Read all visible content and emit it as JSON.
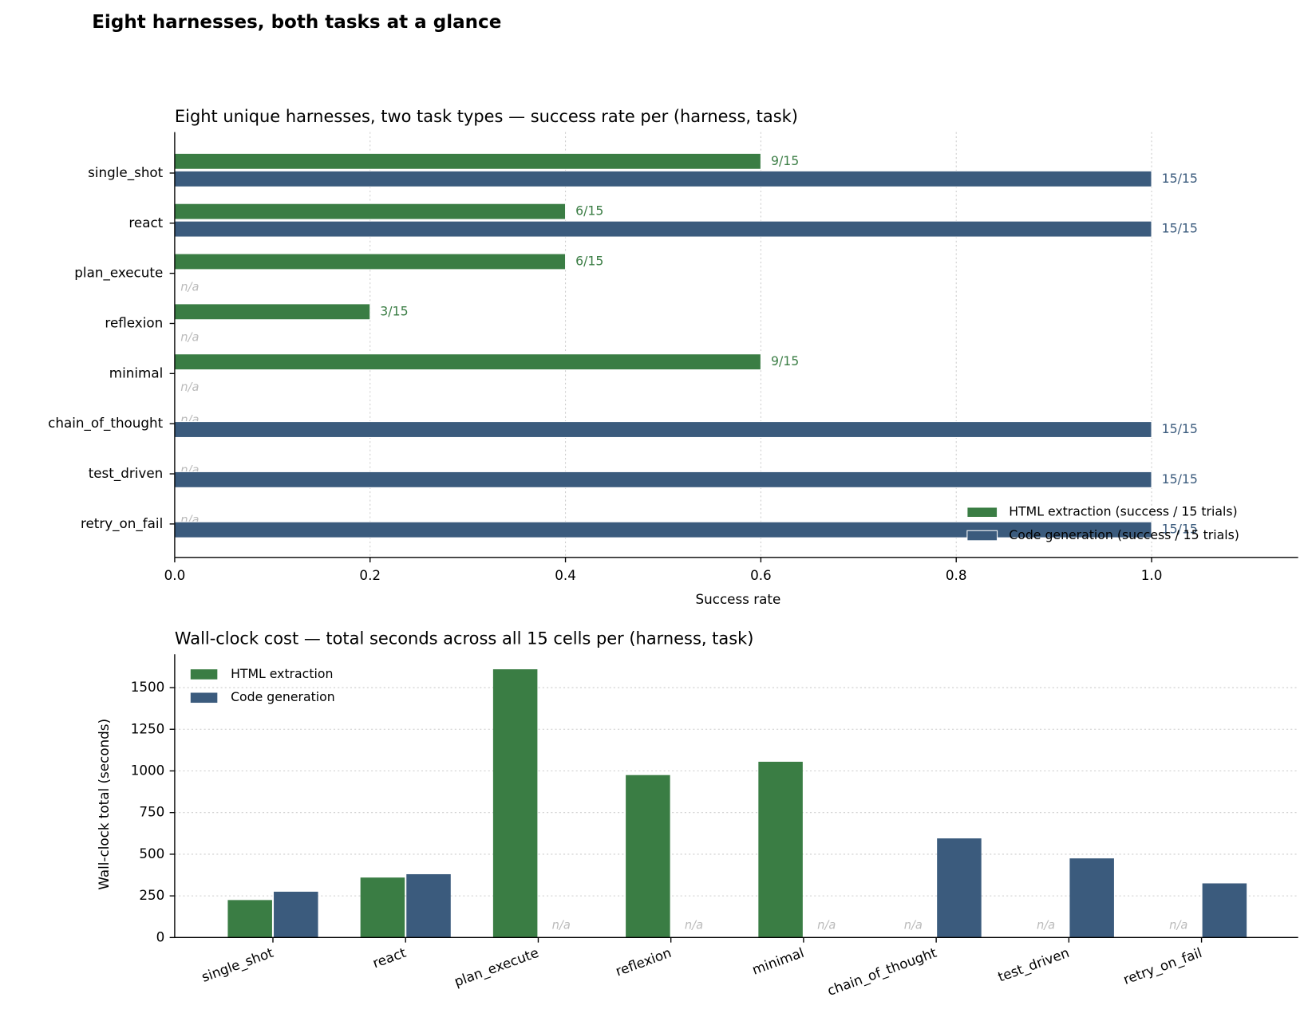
{
  "title": "Eight harnesses, both tasks at a glance",
  "chart_data": [
    {
      "type": "hbar",
      "title": "Eight unique harnesses, two task types — success rate per (harness, task)",
      "xlabel": "Success rate",
      "categories": [
        "single_shot",
        "react",
        "plan_execute",
        "reflexion",
        "minimal",
        "chain_of_thought",
        "test_driven",
        "retry_on_fail"
      ],
      "series": [
        {
          "name": "HTML extraction (success / 15 trials)",
          "color": "#3a7d44",
          "values": [
            0.6,
            0.4,
            0.4,
            0.2,
            0.6,
            null,
            null,
            null
          ],
          "value_labels": [
            "9/15",
            "6/15",
            "6/15",
            "3/15",
            "9/15",
            "n/a",
            "n/a",
            "n/a"
          ]
        },
        {
          "name": "Code generation (success / 15 trials)",
          "color": "#3b5b7d",
          "values": [
            1.0,
            1.0,
            null,
            null,
            null,
            1.0,
            1.0,
            1.0
          ],
          "value_labels": [
            "15/15",
            "15/15",
            "n/a",
            "n/a",
            "n/a",
            "15/15",
            "15/15",
            "15/15"
          ]
        }
      ],
      "xlim": [
        0,
        1.15
      ],
      "xticks": [
        {
          "value": 0,
          "label": "0.0"
        },
        {
          "value": 0.2,
          "label": "0.2"
        },
        {
          "value": 0.4,
          "label": "0.4"
        },
        {
          "value": 0.6,
          "label": "0.6"
        },
        {
          "value": 0.8,
          "label": "0.8"
        },
        {
          "value": 1.0,
          "label": "1.0"
        }
      ],
      "grid": true,
      "legend": "lower right"
    },
    {
      "type": "bar",
      "title": "Wall-clock cost — total seconds across all 15 cells per (harness, task)",
      "ylabel": "Wall-clock total (seconds)",
      "categories": [
        "single_shot",
        "react",
        "plan_execute",
        "reflexion",
        "minimal",
        "chain_of_thought",
        "test_driven",
        "retry_on_fail"
      ],
      "series": [
        {
          "name": "HTML extraction",
          "color": "#3a7d44",
          "values": [
            225,
            360,
            1610,
            975,
            1055,
            null,
            null,
            null
          ],
          "value_labels": [
            null,
            null,
            null,
            null,
            null,
            "n/a",
            "n/a",
            "n/a"
          ]
        },
        {
          "name": "Code generation",
          "color": "#3b5b7d",
          "values": [
            275,
            380,
            null,
            null,
            null,
            595,
            475,
            325
          ],
          "value_labels": [
            null,
            null,
            "n/a",
            "n/a",
            "n/a",
            null,
            null,
            null
          ]
        }
      ],
      "ylim": [
        0,
        1700
      ],
      "yticks": [
        0,
        250,
        500,
        750,
        1000,
        1250,
        1500
      ],
      "grid": true,
      "legend": "upper left"
    }
  ]
}
